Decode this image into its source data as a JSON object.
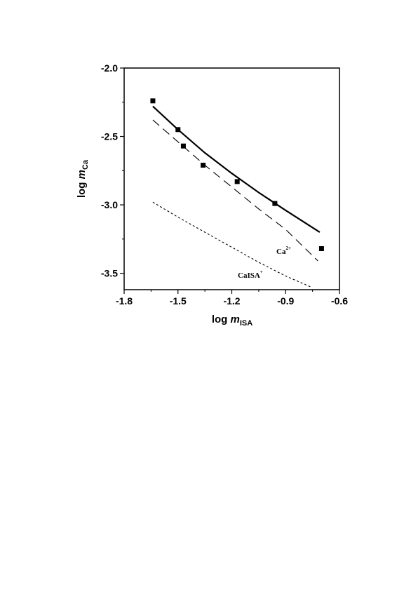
{
  "chart_data": {
    "type": "scatter",
    "title": "",
    "xlabel": {
      "prefix": "log ",
      "var": "m",
      "sub": "ISA"
    },
    "ylabel": {
      "prefix": "log ",
      "var": "m",
      "sub": "Ca"
    },
    "xlim": [
      -1.8,
      -0.6
    ],
    "ylim": [
      -3.62,
      -2.0
    ],
    "x_ticks": [
      "-1.8",
      "-1.5",
      "-1.2",
      "-0.9",
      "-0.6"
    ],
    "x_tick_values": [
      -1.8,
      -1.5,
      -1.2,
      -0.9,
      -0.6
    ],
    "y_ticks": [
      "-2.0",
      "-2.5",
      "-3.0",
      "-3.5"
    ],
    "y_tick_values": [
      -2.0,
      -2.5,
      -3.0,
      -3.5
    ],
    "grid": false,
    "legend": "none",
    "series": [
      {
        "type": "scatter",
        "marker": "square",
        "x": [
          -1.64,
          -1.5,
          -1.47,
          -1.36,
          -1.17,
          -0.96,
          -0.7
        ],
        "y": [
          -2.24,
          -2.45,
          -2.57,
          -2.71,
          -2.83,
          -2.99,
          -3.32
        ]
      },
      {
        "type": "line",
        "style": "solid",
        "x": [
          -1.64,
          -1.5,
          -1.35,
          -1.2,
          -1.05,
          -0.9,
          -0.71
        ],
        "y": [
          -2.28,
          -2.45,
          -2.62,
          -2.77,
          -2.91,
          -3.04,
          -3.2
        ]
      },
      {
        "name": "Ca",
        "name_sup": "2+",
        "type": "line",
        "style": "dashed",
        "x": [
          -1.64,
          -1.5,
          -1.35,
          -1.2,
          -1.05,
          -0.9,
          -0.72
        ],
        "y": [
          -2.38,
          -2.54,
          -2.71,
          -2.87,
          -3.03,
          -3.18,
          -3.41
        ]
      },
      {
        "name": "CaISA",
        "name_sup": "+",
        "type": "line",
        "style": "dotted",
        "x": [
          -1.64,
          -1.5,
          -1.35,
          -1.2,
          -1.05,
          -0.9,
          -0.76
        ],
        "y": [
          -2.98,
          -3.09,
          -3.2,
          -3.31,
          -3.42,
          -3.52,
          -3.6
        ]
      }
    ]
  }
}
